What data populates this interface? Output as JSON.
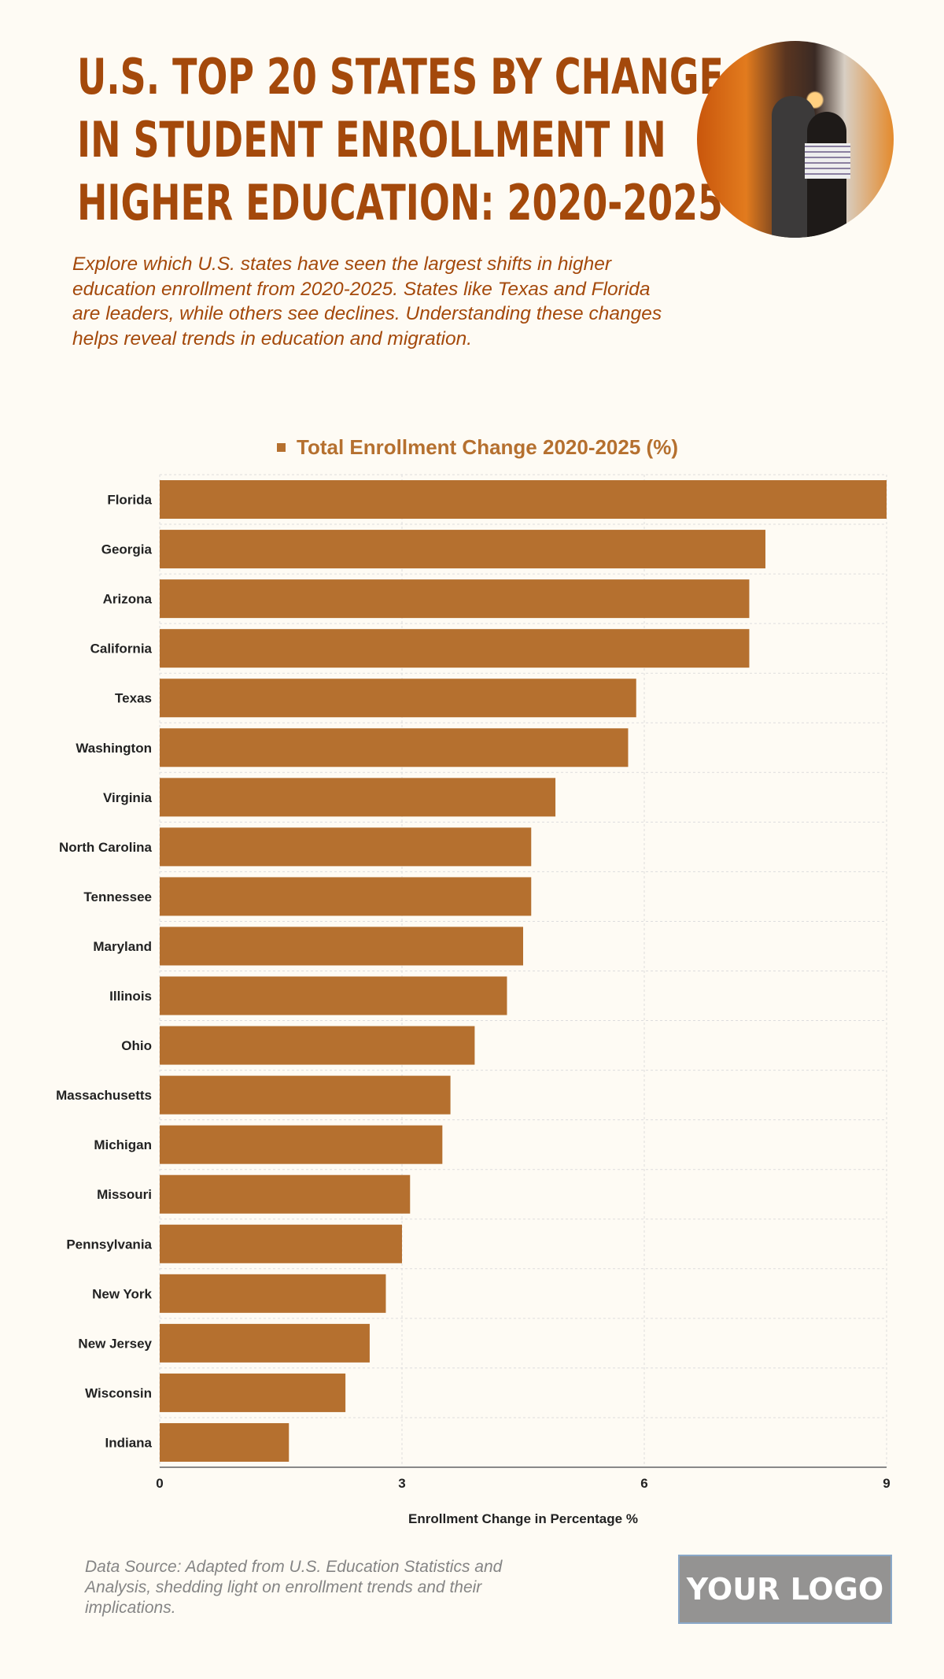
{
  "header": {
    "title_lines": [
      "U.S. TOP 20 STATES BY CHANGE",
      "IN STUDENT ENROLLMENT IN",
      "HIGHER EDUCATION: 2020-2025"
    ],
    "description": "Explore which U.S. states have seen the largest shifts in higher education enrollment from 2020-2025. States like Texas and Florida are leaders, while others see declines. Understanding these changes helps reveal trends in education and migration."
  },
  "colors": {
    "title": "#a4490b",
    "bar": "#b5702f",
    "background": "#fefbf4"
  },
  "chart_data": {
    "type": "bar",
    "orientation": "horizontal",
    "categories": [
      "Florida",
      "Georgia",
      "Arizona",
      "California",
      "Texas",
      "Washington",
      "Virginia",
      "North Carolina",
      "Tennessee",
      "Maryland",
      "Illinois",
      "Ohio",
      "Massachusetts",
      "Michigan",
      "Missouri",
      "Pennsylvania",
      "New York",
      "New Jersey",
      "Wisconsin",
      "Indiana"
    ],
    "series": [
      {
        "name": "Total Enrollment Change 2020-2025 (%)",
        "values": [
          9.0,
          7.5,
          7.3,
          7.3,
          5.9,
          5.8,
          4.9,
          4.6,
          4.6,
          4.5,
          4.3,
          3.9,
          3.6,
          3.5,
          3.1,
          3.0,
          2.8,
          2.6,
          2.3,
          1.6
        ]
      }
    ],
    "xlabel": "Enrollment Change in Percentage %",
    "ylabel": "",
    "xlim": [
      0,
      9
    ],
    "xticks": [
      "0",
      "3",
      "6",
      "9"
    ],
    "grid": true,
    "legend": "top-center"
  },
  "footer": {
    "source": "Data Source: Adapted from U.S. Education Statistics and Analysis, shedding light on enrollment trends and their implications.",
    "logo": "YOUR LOGO"
  }
}
